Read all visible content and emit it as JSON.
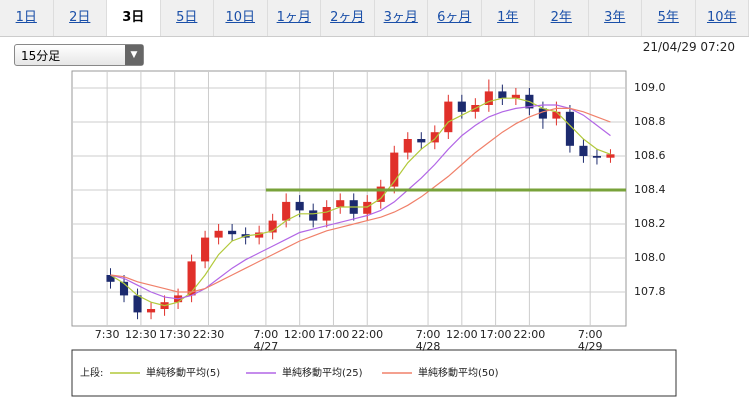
{
  "tabs": [
    "1日",
    "2日",
    "3日",
    "5日",
    "10日",
    "1ヶ月",
    "2ヶ月",
    "3ヶ月",
    "6ヶ月",
    "1年",
    "2年",
    "3年",
    "5年",
    "10年"
  ],
  "selected_tab": 2,
  "interval_select": "15分足",
  "timestamp": "21/04/29 07:20",
  "chart_data": {
    "type": "candlestick",
    "x": [
      8,
      10,
      12,
      14,
      16,
      18,
      20,
      22,
      24,
      26,
      28,
      30,
      32,
      34,
      36,
      38,
      40,
      42,
      44,
      46,
      48,
      50,
      52,
      54,
      56,
      58,
      60,
      62,
      64,
      66,
      68,
      70,
      72,
      74,
      76,
      78,
      80,
      82
    ],
    "open": [
      107.9,
      107.86,
      107.78,
      107.68,
      107.7,
      107.74,
      107.78,
      107.98,
      108.12,
      108.16,
      108.14,
      108.12,
      108.15,
      108.22,
      108.33,
      108.28,
      108.22,
      108.3,
      108.34,
      108.26,
      108.33,
      108.42,
      108.62,
      108.7,
      108.68,
      108.74,
      108.92,
      108.86,
      108.9,
      108.98,
      108.94,
      108.96,
      108.88,
      108.82,
      108.86,
      108.66,
      108.6,
      108.59
    ],
    "high": [
      107.94,
      107.9,
      107.82,
      107.74,
      107.78,
      107.82,
      108.02,
      108.16,
      108.2,
      108.2,
      108.18,
      108.19,
      108.26,
      108.38,
      108.37,
      108.32,
      108.34,
      108.38,
      108.38,
      108.37,
      108.46,
      108.66,
      108.74,
      108.74,
      108.78,
      108.96,
      108.96,
      108.94,
      109.05,
      109.02,
      109.0,
      109.0,
      108.92,
      108.92,
      108.9,
      108.7,
      108.64,
      108.64
    ],
    "low": [
      107.82,
      107.74,
      107.64,
      107.64,
      107.66,
      107.7,
      107.74,
      107.94,
      108.08,
      108.1,
      108.08,
      108.08,
      108.11,
      108.18,
      108.24,
      108.18,
      108.18,
      108.26,
      108.22,
      108.22,
      108.29,
      108.38,
      108.58,
      108.64,
      108.64,
      108.7,
      108.82,
      108.82,
      108.86,
      108.9,
      108.9,
      108.84,
      108.76,
      108.78,
      108.62,
      108.56,
      108.55,
      108.56
    ],
    "close": [
      107.86,
      107.78,
      107.68,
      107.7,
      107.74,
      107.78,
      107.98,
      108.12,
      108.16,
      108.14,
      108.12,
      108.15,
      108.22,
      108.33,
      108.28,
      108.22,
      108.3,
      108.34,
      108.26,
      108.33,
      108.42,
      108.62,
      108.7,
      108.68,
      108.74,
      108.92,
      108.86,
      108.9,
      108.98,
      108.94,
      108.96,
      108.88,
      108.82,
      108.86,
      108.66,
      108.6,
      108.59,
      108.61
    ],
    "up_color": "#e0302a",
    "down_color": "#1c2a6e",
    "series": [
      {
        "name": "単純移動平均(5)",
        "color": "#b2c93a",
        "values": [
          107.9,
          107.85,
          107.78,
          107.74,
          107.72,
          107.74,
          107.8,
          107.9,
          108.02,
          108.1,
          108.13,
          108.14,
          108.16,
          108.22,
          108.26,
          108.26,
          108.27,
          108.3,
          108.3,
          108.3,
          108.35,
          108.45,
          108.56,
          108.64,
          108.7,
          108.8,
          108.84,
          108.88,
          108.92,
          108.94,
          108.94,
          108.92,
          108.88,
          108.86,
          108.78,
          108.7,
          108.64,
          108.61
        ]
      },
      {
        "name": "単純移動平均(25)",
        "color": "#b266e6",
        "values": [
          107.9,
          107.88,
          107.84,
          107.8,
          107.77,
          107.76,
          107.78,
          107.82,
          107.88,
          107.94,
          107.99,
          108.03,
          108.07,
          108.11,
          108.15,
          108.17,
          108.19,
          108.21,
          108.23,
          108.25,
          108.28,
          108.33,
          108.4,
          108.47,
          108.55,
          108.64,
          108.72,
          108.78,
          108.83,
          108.86,
          108.88,
          108.89,
          108.9,
          108.9,
          108.88,
          108.84,
          108.78,
          108.72
        ]
      },
      {
        "name": "単純移動平均(50)",
        "color": "#f0806a",
        "values": [
          107.9,
          107.89,
          107.86,
          107.84,
          107.82,
          107.8,
          107.8,
          107.82,
          107.86,
          107.9,
          107.94,
          107.98,
          108.02,
          108.06,
          108.1,
          108.13,
          108.16,
          108.18,
          108.2,
          108.22,
          108.24,
          108.27,
          108.31,
          108.36,
          108.42,
          108.48,
          108.55,
          108.62,
          108.68,
          108.74,
          108.79,
          108.83,
          108.86,
          108.88,
          108.88,
          108.86,
          108.83,
          108.8
        ]
      }
    ],
    "legend_title": "上段:",
    "hline": {
      "value": 108.4,
      "x_start": 31,
      "color": "#78a23a"
    },
    "xlim": [
      2.3,
      84.3
    ],
    "xticks": [
      {
        "value": 7.5,
        "label": "7:30"
      },
      {
        "value": 12.5,
        "label": "12:30"
      },
      {
        "value": 17.5,
        "label": "17:30"
      },
      {
        "value": 22.5,
        "label": "22:30"
      },
      {
        "value": 31,
        "label": "7:00"
      },
      {
        "value": 36,
        "label": "12:00"
      },
      {
        "value": 41,
        "label": "17:00"
      },
      {
        "value": 46,
        "label": "22:00"
      },
      {
        "value": 55,
        "label": "7:00"
      },
      {
        "value": 60,
        "label": "12:00"
      },
      {
        "value": 65,
        "label": "17:00"
      },
      {
        "value": 70,
        "label": "22:00"
      },
      {
        "value": 79,
        "label": "7:00"
      }
    ],
    "date_ticks": [
      {
        "value": 31,
        "label": "4/27"
      },
      {
        "value": 55,
        "label": "4/28"
      },
      {
        "value": 79,
        "label": "4/29"
      }
    ],
    "ylim": [
      107.6,
      109.1
    ],
    "yticks": [
      107.8,
      {
        "value": 108.0,
        "label": "108.0"
      },
      108.2,
      108.4,
      108.6,
      108.8,
      {
        "value": 109.0,
        "label": "109.0"
      }
    ],
    "grid": true
  }
}
